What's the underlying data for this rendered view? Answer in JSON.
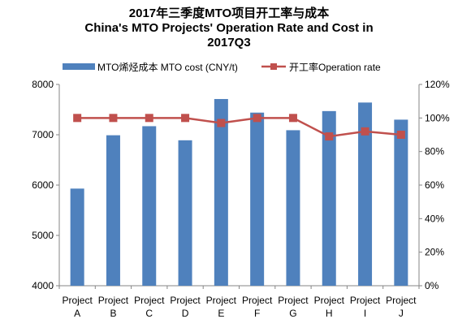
{
  "chart_data": {
    "type": "bar",
    "title_lines": [
      "2017年三季度MTO项目开工率与成本",
      "China's MTO Projects' Operation Rate and Cost in",
      "2017Q3"
    ],
    "categories": [
      [
        "Project",
        "A"
      ],
      [
        "Project",
        "B"
      ],
      [
        "Project",
        "C"
      ],
      [
        "Project",
        "D"
      ],
      [
        "Project",
        "E"
      ],
      [
        "Project",
        "F"
      ],
      [
        "Project",
        "G"
      ],
      [
        "Project",
        "H"
      ],
      [
        "Project",
        "I"
      ],
      [
        "Project",
        "J"
      ]
    ],
    "series": [
      {
        "name": "MTO烯烃成本 MTO cost (CNY/t)",
        "type": "bar",
        "axis": "left",
        "color": "#4F81BD",
        "values": [
          5930,
          6990,
          7170,
          6890,
          7710,
          7440,
          7090,
          7470,
          7640,
          7300
        ]
      },
      {
        "name": "开工率Operation rate",
        "type": "line",
        "axis": "right",
        "color": "#C0504D",
        "values": [
          100,
          100,
          100,
          100,
          97,
          100,
          100,
          89,
          92,
          90
        ]
      }
    ],
    "left_axis": {
      "min": 4000,
      "max": 8000,
      "ticks": [
        "4000",
        "5000",
        "6000",
        "7000",
        "8000"
      ]
    },
    "right_axis": {
      "min": 0,
      "max": 120,
      "ticks": [
        "0%",
        "20%",
        "40%",
        "60%",
        "80%",
        "100%",
        "120%"
      ]
    },
    "grid": false,
    "legend_position": "top"
  }
}
